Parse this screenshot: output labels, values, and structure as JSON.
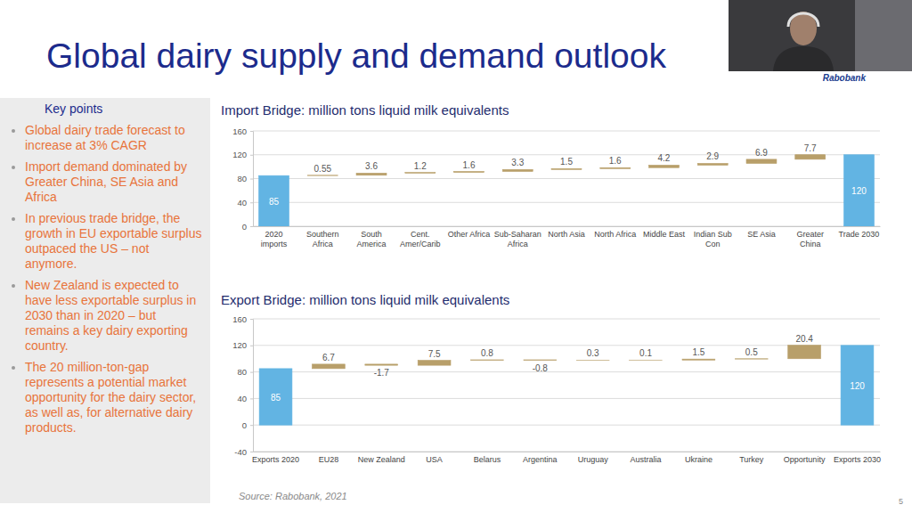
{
  "title": "Global dairy supply and demand outlook",
  "brand": "Rabobank",
  "key_points": {
    "heading": "Key points",
    "items": [
      "Global dairy trade forecast to increase at 3% CAGR",
      "Import demand dominated by Greater China, SE Asia and Africa",
      "In previous trade bridge, the growth in EU exportable surplus outpaced the US – not anymore.",
      "New Zealand is expected to have less exportable surplus in 2030 than in 2020 – but remains a key dairy exporting country.",
      "The 20 million-ton-gap represents a potential market opportunity for the dairy sector, as well as, for alternative dairy products."
    ]
  },
  "source": "Source: Rabobank, 2021",
  "page": "5",
  "chart_data": [
    {
      "type": "waterfall",
      "title": "Import Bridge: million tons liquid milk equivalents",
      "categories": [
        "2020 imports",
        "Southern Africa",
        "South America",
        "Cent. Amer/Carib",
        "Other Africa",
        "Sub-Saharan Africa",
        "North Asia",
        "North Africa",
        "Middle East",
        "Indian Sub Con",
        "SE Asia",
        "Greater China",
        "Trade 2030"
      ],
      "values": [
        85,
        0.55,
        3.6,
        1.2,
        1.6,
        3.3,
        1.5,
        1.6,
        4.2,
        2.9,
        6.9,
        7.7,
        120
      ],
      "colors": [
        "#62b4e3",
        "#b89f6a",
        "#b89f6a",
        "#b89f6a",
        "#b89f6a",
        "#b89f6a",
        "#b89f6a",
        "#b89f6a",
        "#b89f6a",
        "#b89f6a",
        "#b89f6a",
        "#b89f6a",
        "#62b4e3"
      ],
      "ylim": [
        0,
        160
      ],
      "yticks": [
        0,
        40,
        80,
        120,
        160
      ],
      "grid": true,
      "data_labels": true
    },
    {
      "type": "waterfall",
      "title": "Export Bridge: million tons liquid milk equivalents",
      "categories": [
        "Exports 2020",
        "EU28",
        "New Zealand",
        "USA",
        "Belarus",
        "Argentina",
        "Uruguay",
        "Australia",
        "Ukraine",
        "Turkey",
        "Opportunity",
        "Exports 2030"
      ],
      "values": [
        85,
        6.7,
        -1.7,
        7.5,
        0.8,
        -0.8,
        0.3,
        0.1,
        1.5,
        0.5,
        20.4,
        120
      ],
      "colors": [
        "#62b4e3",
        "#b89f6a",
        "#b89f6a",
        "#b89f6a",
        "#b89f6a",
        "#b89f6a",
        "#b89f6a",
        "#b89f6a",
        "#b89f6a",
        "#b89f6a",
        "#b89f6a",
        "#62b4e3"
      ],
      "ylim": [
        -40,
        160
      ],
      "yticks": [
        -40,
        0,
        40,
        80,
        120,
        160
      ],
      "grid": true,
      "data_labels": true
    }
  ]
}
